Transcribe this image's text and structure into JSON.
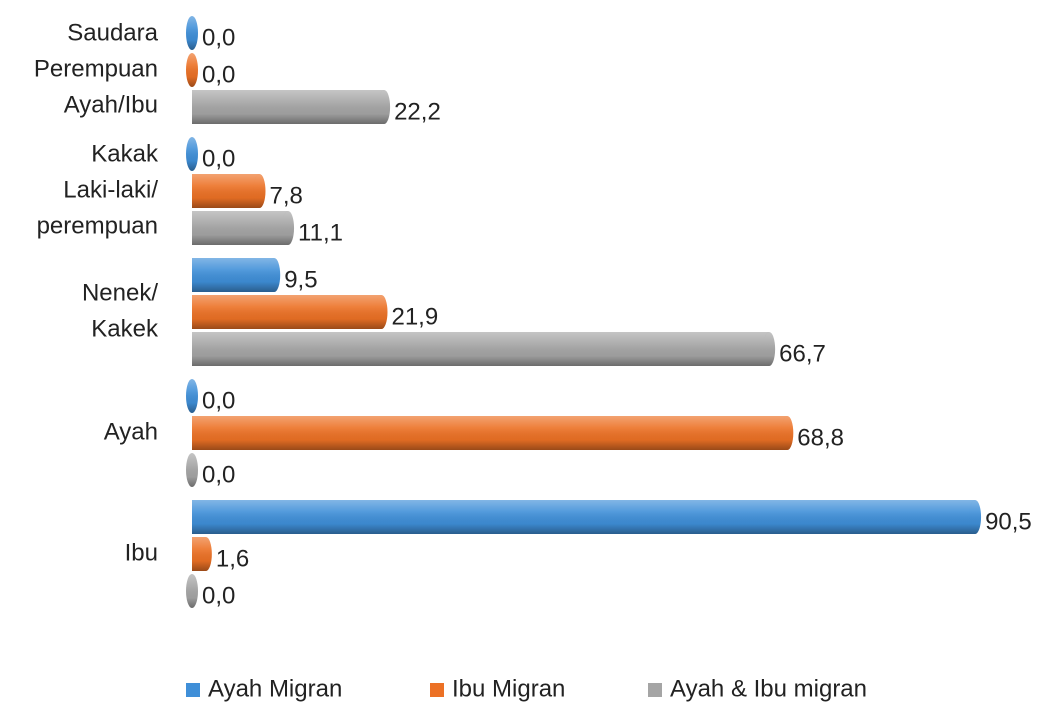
{
  "chart_data": {
    "type": "bar",
    "orientation": "horizontal",
    "categories": [
      [
        "Saudara",
        "Perempuan",
        "Ayah/Ibu"
      ],
      [
        "Kakak",
        "Laki-laki/",
        "perempuan"
      ],
      [
        "Nenek/",
        "Kakek"
      ],
      [
        "Ayah"
      ],
      [
        "Ibu"
      ]
    ],
    "series": [
      {
        "name": "Ayah Migran",
        "color": "#3f8fd8",
        "values": [
          0.0,
          0.0,
          9.5,
          0.0,
          90.5
        ],
        "value_labels": [
          "0,0",
          "0,0",
          "9,5",
          "0,0",
          "90,5"
        ]
      },
      {
        "name": "Ibu Migran",
        "color": "#ec7125",
        "values": [
          0.0,
          7.8,
          21.9,
          68.8,
          1.6
        ],
        "value_labels": [
          "0,0",
          "7,8",
          "21,9",
          "68,8",
          "1,6"
        ]
      },
      {
        "name": "Ayah & Ibu migran",
        "color": "#a5a5a5",
        "values": [
          22.2,
          11.1,
          66.7,
          0.0,
          0.0
        ],
        "value_labels": [
          "22,2",
          "11,1",
          "66,7",
          "0,0",
          "0,0"
        ]
      }
    ],
    "xlim": [
      0,
      95
    ],
    "legend": "bottom"
  }
}
